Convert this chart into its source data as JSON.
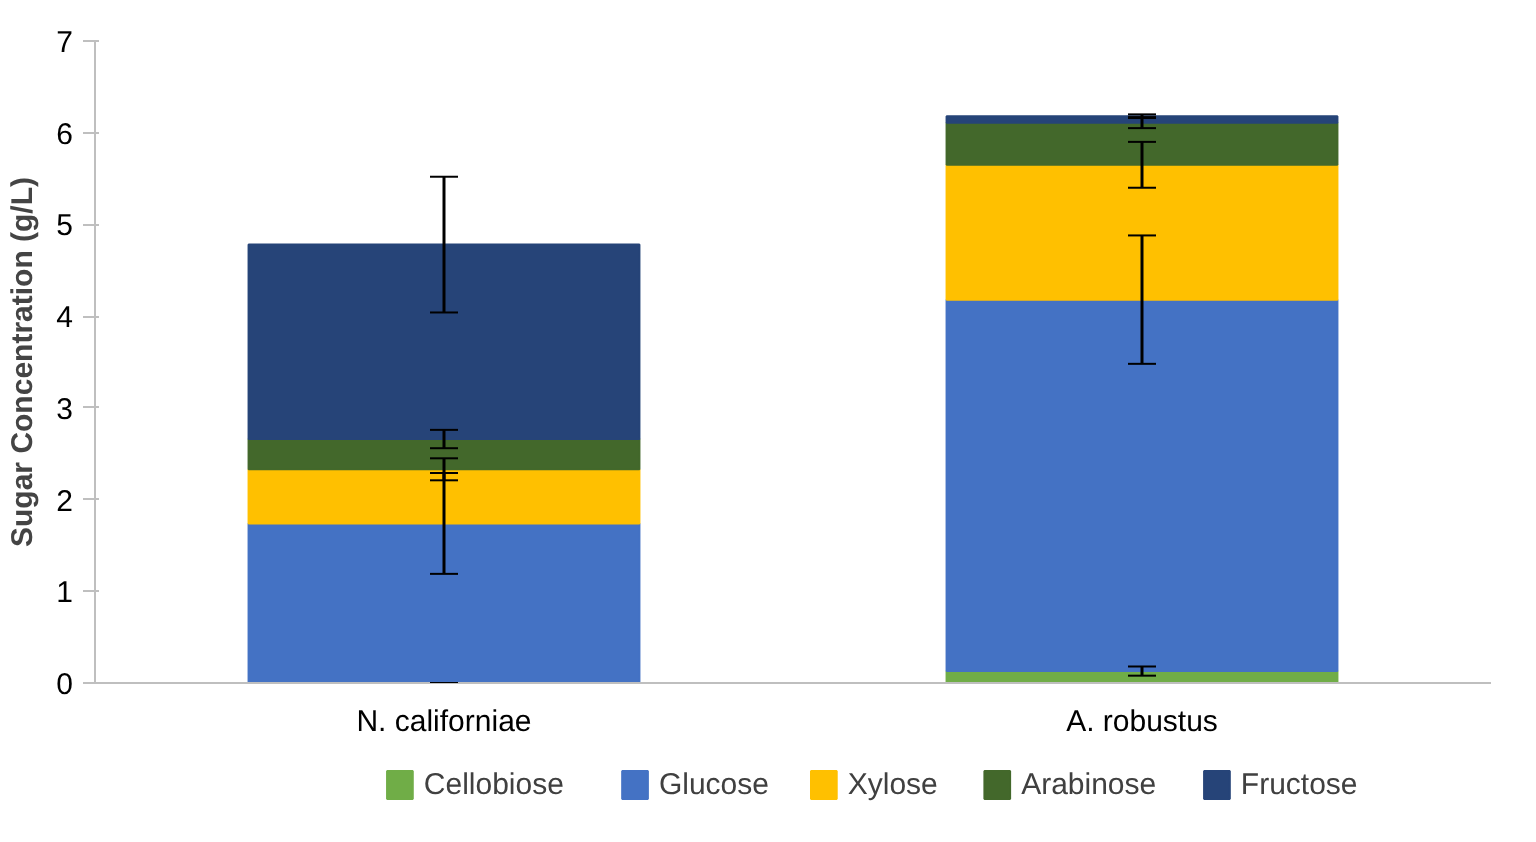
{
  "chart_data": {
    "type": "bar",
    "stacked": true,
    "ylabel": "Sugar Concentration (g/L)",
    "categories": [
      "N. californiae",
      "A. robustus"
    ],
    "series": [
      {
        "name": "Cellobiose",
        "color": "#70ad47",
        "values": [
          0,
          0.13
        ],
        "errors": [
          0,
          0.05
        ]
      },
      {
        "name": "Glucose",
        "color": "#4472c4",
        "values": [
          1.74,
          4.05
        ],
        "errors": [
          0.55,
          0.7
        ]
      },
      {
        "name": "Xylose",
        "color": "#ffc000",
        "values": [
          0.59,
          1.47
        ],
        "errors": [
          0.12,
          0.25
        ]
      },
      {
        "name": "Arabinose",
        "color": "#43682b",
        "values": [
          0.33,
          0.46
        ],
        "errors": [
          0.1,
          0.06
        ]
      },
      {
        "name": "Fructose",
        "color": "#264478",
        "values": [
          2.12,
          0.07
        ],
        "errors": [
          0.74,
          0.02
        ]
      }
    ],
    "ylim": [
      0,
      7
    ],
    "yticks": [
      0,
      1,
      2,
      3,
      4,
      5,
      6,
      7
    ],
    "grid": false,
    "legend": "bottom"
  }
}
